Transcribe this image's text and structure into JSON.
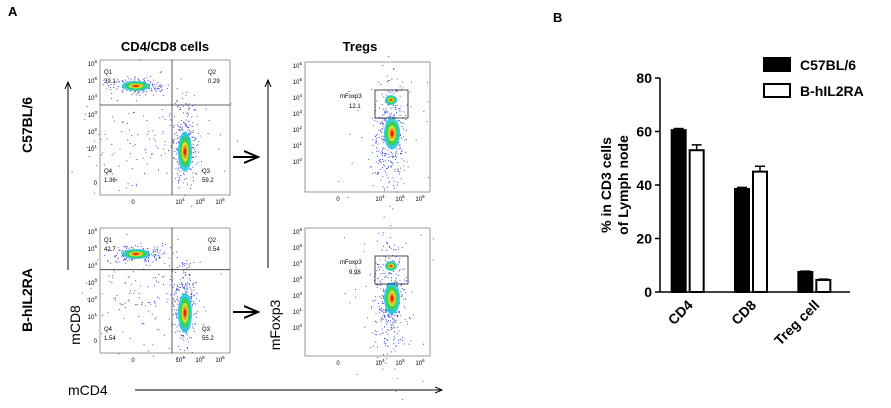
{
  "panels": {
    "a": "A",
    "b": "B"
  },
  "flow": {
    "col_titles": [
      "CD4/CD8 cells",
      "Tregs"
    ],
    "row_labels": [
      "C57BL/6",
      "B-hIL2RA"
    ],
    "x_label": "mCD4",
    "y_labels": [
      "mCD8",
      "mFoxp3"
    ],
    "tick_base": "10",
    "zero": "0",
    "cd_y_exps": [
      "6",
      "5",
      "4",
      "3",
      "2",
      "1"
    ],
    "cd_x_exps": [
      "4",
      "5",
      "6"
    ],
    "treg_y_exps": [
      "6",
      "5",
      "4",
      "3",
      "2",
      "1",
      "0"
    ],
    "treg_x_exps": [
      "4",
      "5",
      "6"
    ],
    "plots": [
      {
        "quadrants": [
          {
            "name": "Q1",
            "value": 39.1
          },
          {
            "name": "Q2",
            "value": 0.29
          },
          {
            "name": "Q4",
            "value": 1.36
          },
          {
            "name": "Q3",
            "value": 59.2
          }
        ]
      },
      {
        "gate": {
          "name": "mFoxp3",
          "value": 12.1
        }
      },
      {
        "quadrants": [
          {
            "name": "Q1",
            "value": 42.7
          },
          {
            "name": "Q2",
            "value": 0.54
          },
          {
            "name": "Q4",
            "value": 1.54
          },
          {
            "name": "Q3",
            "value": 55.2
          }
        ]
      },
      {
        "gate": {
          "name": "mFoxp3",
          "value": 9.98
        }
      }
    ]
  },
  "chart_data": {
    "type": "bar",
    "y_label": [
      "% in CD3 cells",
      "of Lymph node"
    ],
    "categories": [
      "CD4",
      "CD8",
      "Treg cell"
    ],
    "series": [
      {
        "name": "C57BL/6",
        "color": "#000000",
        "values": [
          60.5,
          38.5,
          7.5
        ],
        "errors": [
          0.6,
          0.6,
          0.3
        ]
      },
      {
        "name": "B-hIL2RA",
        "color": "#ffffff",
        "values": [
          53,
          45,
          4.5
        ],
        "errors": [
          2,
          2,
          0.3
        ]
      }
    ],
    "ylim": [
      0,
      80
    ],
    "yticks": [
      0,
      20,
      40,
      60,
      80
    ],
    "legend": "top-right"
  }
}
